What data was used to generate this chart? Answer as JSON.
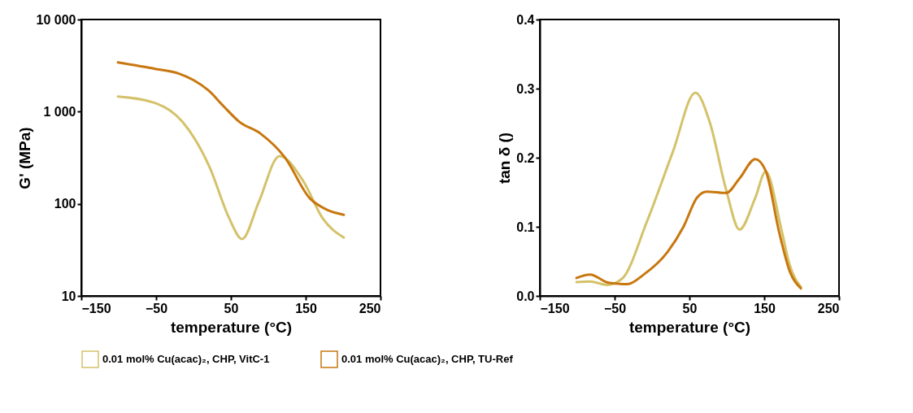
{
  "chart_data": [
    {
      "type": "line",
      "xlabel": "temperature (°C)",
      "ylabel": "G' (MPa)",
      "log": "y",
      "grid": false,
      "legend": "bottom",
      "marker": "none",
      "line_style": "solid",
      "xlim": [
        -150,
        250
      ],
      "xticks": [
        -150,
        -50,
        50,
        150,
        250
      ],
      "ylim": [
        10,
        10000
      ],
      "yticks": [
        {
          "value": 10,
          "label": "10"
        },
        {
          "value": 100,
          "label": "100"
        },
        {
          "value": 1000,
          "label": "1 000"
        },
        {
          "value": 10000,
          "label": "10 000"
        }
      ],
      "series": [
        {
          "name": "0.01 mol% Cu(acac)₂, CHP, VitC-1",
          "color": "#d4c26a",
          "x": [
            -101,
            -50,
            -15,
            22,
            47,
            65,
            87,
            115,
            147,
            173,
            201
          ],
          "values": [
            1460,
            1230,
            780,
            245,
            72,
            41.5,
            103,
            330,
            175,
            69,
            43
          ]
        },
        {
          "name": "0.01 mol% Cu(acac)₂, CHP, TU-Ref",
          "color": "#c8770f",
          "x": [
            -101,
            -50,
            -20,
            0,
            20,
            40,
            61,
            90,
            122,
            155,
            180,
            201
          ],
          "values": [
            3420,
            2900,
            2600,
            2200,
            1700,
            1150,
            780,
            575,
            320,
            116,
            85,
            76
          ]
        }
      ]
    },
    {
      "type": "line",
      "xlabel": "temperature (°C)",
      "ylabel": "tan δ ()",
      "grid": false,
      "legend": "bottom",
      "marker": "none",
      "line_style": "solid",
      "xlim": [
        -150,
        250
      ],
      "xticks": [
        -150,
        -50,
        50,
        150,
        250
      ],
      "ylim": [
        0,
        0.4
      ],
      "yticks": [
        {
          "value": 0,
          "label": "0.0"
        },
        {
          "value": 0.1,
          "label": "0.1"
        },
        {
          "value": 0.2,
          "label": "0.2"
        },
        {
          "value": 0.3,
          "label": "0.3"
        },
        {
          "value": 0.4,
          "label": "0.4"
        }
      ],
      "series": [
        {
          "name": "0.01 mol% Cu(acac)₂, CHP, VitC-1",
          "color": "#d4c26a",
          "x": [
            -101,
            -83,
            -60,
            -40,
            -7,
            28,
            58,
            77,
            99,
            117,
            138,
            152,
            173,
            184,
            199
          ],
          "values": [
            0.02,
            0.021,
            0.016,
            0.025,
            0.107,
            0.209,
            0.294,
            0.252,
            0.154,
            0.096,
            0.142,
            0.18,
            0.096,
            0.045,
            0.013
          ]
        },
        {
          "name": "0.01 mol% Cu(acac)₂, CHP, TU-Ref",
          "color": "#c8770f",
          "x": [
            -101,
            -83,
            -58,
            -33,
            -11,
            21,
            42,
            60,
            73,
            99,
            117,
            138,
            152,
            170,
            184,
            199
          ],
          "values": [
            0.026,
            0.031,
            0.019,
            0.017,
            0.031,
            0.064,
            0.1,
            0.142,
            0.151,
            0.149,
            0.17,
            0.198,
            0.181,
            0.092,
            0.036,
            0.011
          ]
        }
      ]
    }
  ]
}
